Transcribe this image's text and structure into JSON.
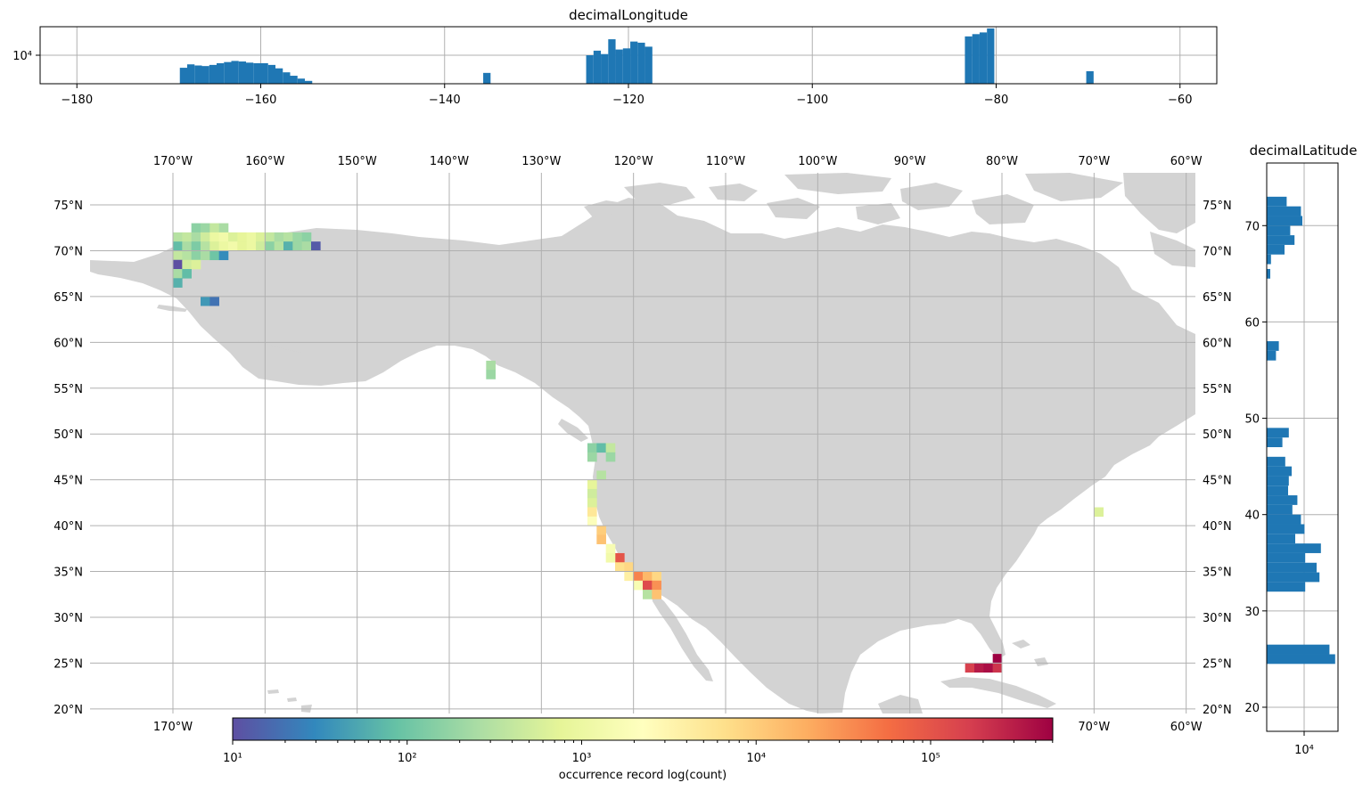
{
  "chart_data": [
    {
      "type": "bar",
      "title": "decimalLongitude",
      "orientation": "vertical",
      "xlim": [
        -184,
        -56
      ],
      "log_scale": "y",
      "grid": true,
      "xticks": [
        -180,
        -160,
        -140,
        -120,
        -100,
        -80,
        -60
      ],
      "xtick_labels": [
        "−180",
        "−160",
        "−140",
        "−120",
        "−100",
        "−80",
        "−60"
      ],
      "ytick_label": "10⁴",
      "color": "#1f77b4",
      "bins": [
        {
          "x0": -168.8,
          "x1": -168.0,
          "frac": 0.28
        },
        {
          "x0": -168.0,
          "x1": -167.2,
          "frac": 0.34
        },
        {
          "x0": -167.2,
          "x1": -166.4,
          "frac": 0.32
        },
        {
          "x0": -166.4,
          "x1": -165.6,
          "frac": 0.31
        },
        {
          "x0": -165.6,
          "x1": -164.8,
          "frac": 0.33
        },
        {
          "x0": -164.8,
          "x1": -164.0,
          "frac": 0.36
        },
        {
          "x0": -164.0,
          "x1": -163.2,
          "frac": 0.38
        },
        {
          "x0": -163.2,
          "x1": -162.4,
          "frac": 0.4
        },
        {
          "x0": -162.4,
          "x1": -161.6,
          "frac": 0.39
        },
        {
          "x0": -161.6,
          "x1": -160.8,
          "frac": 0.37
        },
        {
          "x0": -160.8,
          "x1": -160.0,
          "frac": 0.36
        },
        {
          "x0": -160.0,
          "x1": -159.2,
          "frac": 0.36
        },
        {
          "x0": -159.2,
          "x1": -158.4,
          "frac": 0.33
        },
        {
          "x0": -158.4,
          "x1": -157.6,
          "frac": 0.27
        },
        {
          "x0": -157.6,
          "x1": -156.8,
          "frac": 0.2
        },
        {
          "x0": -156.8,
          "x1": -156.0,
          "frac": 0.14
        },
        {
          "x0": -156.0,
          "x1": -155.2,
          "frac": 0.09
        },
        {
          "x0": -155.2,
          "x1": -154.4,
          "frac": 0.05
        },
        {
          "x0": -135.8,
          "x1": -135.0,
          "frac": 0.19
        },
        {
          "x0": -124.6,
          "x1": -123.8,
          "frac": 0.5
        },
        {
          "x0": -123.8,
          "x1": -123.0,
          "frac": 0.58
        },
        {
          "x0": -123.0,
          "x1": -122.2,
          "frac": 0.52
        },
        {
          "x0": -122.2,
          "x1": -121.4,
          "frac": 0.78
        },
        {
          "x0": -121.4,
          "x1": -120.6,
          "frac": 0.6
        },
        {
          "x0": -120.6,
          "x1": -119.8,
          "frac": 0.62
        },
        {
          "x0": -119.8,
          "x1": -119.0,
          "frac": 0.74
        },
        {
          "x0": -119.0,
          "x1": -118.2,
          "frac": 0.72
        },
        {
          "x0": -118.2,
          "x1": -117.4,
          "frac": 0.65
        },
        {
          "x0": -83.4,
          "x1": -82.6,
          "frac": 0.83
        },
        {
          "x0": -82.6,
          "x1": -81.8,
          "frac": 0.87
        },
        {
          "x0": -81.8,
          "x1": -81.0,
          "frac": 0.9
        },
        {
          "x0": -81.0,
          "x1": -80.2,
          "frac": 0.97
        },
        {
          "x0": -70.2,
          "x1": -69.4,
          "frac": 0.22
        }
      ]
    },
    {
      "type": "heatmap",
      "projection": "PlateCarree",
      "lon_range": [
        -179,
        -59
      ],
      "lat_range": [
        19.5,
        78.5
      ],
      "cell_size_deg": 1,
      "grid": true,
      "lon_ticks": [
        -170,
        -160,
        -150,
        -140,
        -130,
        -120,
        -110,
        -100,
        -90,
        -80,
        -70,
        -60
      ],
      "lon_labels": [
        "170°W",
        "160°W",
        "150°W",
        "140°W",
        "130°W",
        "120°W",
        "110°W",
        "100°W",
        "90°W",
        "80°W",
        "70°W",
        "60°W"
      ],
      "lon_bottom_labels": [
        "170°W",
        "70°W",
        "60°W"
      ],
      "lat_ticks": [
        20,
        25,
        30,
        35,
        40,
        45,
        50,
        55,
        60,
        65,
        70,
        75
      ],
      "lat_labels": [
        "20°N",
        "25°N",
        "30°N",
        "35°N",
        "40°N",
        "45°N",
        "50°N",
        "55°N",
        "60°N",
        "65°N",
        "70°N",
        "75°N"
      ],
      "land_color": "#d3d3d3",
      "log10_range": [
        1,
        5.7
      ],
      "cells": [
        {
          "lon": -167.5,
          "lat": 72.5,
          "log10": 2.2
        },
        {
          "lon": -166.5,
          "lat": 72.5,
          "log10": 2.3
        },
        {
          "lon": -165.5,
          "lat": 72.5,
          "log10": 2.6
        },
        {
          "lon": -164.5,
          "lat": 72.5,
          "log10": 2.4
        },
        {
          "lon": -169.5,
          "lat": 71.5,
          "log10": 2.5
        },
        {
          "lon": -168.5,
          "lat": 71.5,
          "log10": 2.6
        },
        {
          "lon": -167.5,
          "lat": 71.5,
          "log10": 2.4
        },
        {
          "lon": -166.5,
          "lat": 71.5,
          "log10": 2.7
        },
        {
          "lon": -165.5,
          "lat": 71.5,
          "log10": 3.0
        },
        {
          "lon": -164.5,
          "lat": 71.5,
          "log10": 3.1
        },
        {
          "lon": -163.5,
          "lat": 71.5,
          "log10": 2.8
        },
        {
          "lon": -162.5,
          "lat": 71.5,
          "log10": 2.9
        },
        {
          "lon": -161.5,
          "lat": 71.5,
          "log10": 3.0
        },
        {
          "lon": -160.5,
          "lat": 71.5,
          "log10": 2.8
        },
        {
          "lon": -159.5,
          "lat": 71.5,
          "log10": 2.6
        },
        {
          "lon": -158.5,
          "lat": 71.5,
          "log10": 2.4
        },
        {
          "lon": -157.5,
          "lat": 71.5,
          "log10": 2.5
        },
        {
          "lon": -156.5,
          "lat": 71.5,
          "log10": 2.3
        },
        {
          "lon": -155.5,
          "lat": 71.5,
          "log10": 2.2
        },
        {
          "lon": -169.5,
          "lat": 70.5,
          "log10": 1.9
        },
        {
          "lon": -168.5,
          "lat": 70.5,
          "log10": 2.4
        },
        {
          "lon": -167.5,
          "lat": 70.5,
          "log10": 2.1
        },
        {
          "lon": -166.5,
          "lat": 70.5,
          "log10": 2.5
        },
        {
          "lon": -165.5,
          "lat": 70.5,
          "log10": 2.8
        },
        {
          "lon": -164.5,
          "lat": 70.5,
          "log10": 3.0
        },
        {
          "lon": -163.5,
          "lat": 70.5,
          "log10": 3.1
        },
        {
          "lon": -162.5,
          "lat": 70.5,
          "log10": 2.9
        },
        {
          "lon": -161.5,
          "lat": 70.5,
          "log10": 3.0
        },
        {
          "lon": -160.5,
          "lat": 70.5,
          "log10": 2.7
        },
        {
          "lon": -159.5,
          "lat": 70.5,
          "log10": 2.2
        },
        {
          "lon": -158.5,
          "lat": 70.5,
          "log10": 2.5
        },
        {
          "lon": -157.5,
          "lat": 70.5,
          "log10": 1.8
        },
        {
          "lon": -156.5,
          "lat": 70.5,
          "log10": 2.3
        },
        {
          "lon": -155.5,
          "lat": 70.5,
          "log10": 2.4
        },
        {
          "lon": -154.5,
          "lat": 70.5,
          "log10": 1.1
        },
        {
          "lon": -169.5,
          "lat": 69.5,
          "log10": 2.6
        },
        {
          "lon": -168.5,
          "lat": 69.5,
          "log10": 2.5
        },
        {
          "lon": -167.5,
          "lat": 69.5,
          "log10": 2.2
        },
        {
          "lon": -166.5,
          "lat": 69.5,
          "log10": 2.4
        },
        {
          "lon": -165.5,
          "lat": 69.5,
          "log10": 2.0
        },
        {
          "lon": -164.5,
          "lat": 69.5,
          "log10": 1.5
        },
        {
          "lon": -169.5,
          "lat": 68.5,
          "log10": 1.0
        },
        {
          "lon": -168.5,
          "lat": 68.5,
          "log10": 2.7
        },
        {
          "lon": -167.5,
          "lat": 68.5,
          "log10": 2.8
        },
        {
          "lon": -169.5,
          "lat": 67.5,
          "log10": 2.4
        },
        {
          "lon": -168.5,
          "lat": 67.5,
          "log10": 1.9
        },
        {
          "lon": -169.5,
          "lat": 66.5,
          "log10": 1.8
        },
        {
          "lon": -166.5,
          "lat": 64.5,
          "log10": 1.6
        },
        {
          "lon": -165.5,
          "lat": 64.5,
          "log10": 1.3
        },
        {
          "lon": -135.5,
          "lat": 57.5,
          "log10": 2.4
        },
        {
          "lon": -135.5,
          "lat": 56.5,
          "log10": 2.3
        },
        {
          "lon": -124.5,
          "lat": 48.5,
          "log10": 2.2
        },
        {
          "lon": -123.5,
          "lat": 48.5,
          "log10": 1.9
        },
        {
          "lon": -122.5,
          "lat": 48.5,
          "log10": 2.6
        },
        {
          "lon": -124.5,
          "lat": 47.5,
          "log10": 2.3
        },
        {
          "lon": -122.5,
          "lat": 47.5,
          "log10": 2.3
        },
        {
          "lon": -123.5,
          "lat": 45.5,
          "log10": 2.5
        },
        {
          "lon": -124.5,
          "lat": 44.5,
          "log10": 2.9
        },
        {
          "lon": -124.5,
          "lat": 43.5,
          "log10": 2.7
        },
        {
          "lon": -124.5,
          "lat": 42.5,
          "log10": 2.8
        },
        {
          "lon": -124.5,
          "lat": 41.5,
          "log10": 3.7
        },
        {
          "lon": -124.5,
          "lat": 40.5,
          "log10": 3.3
        },
        {
          "lon": -123.5,
          "lat": 39.5,
          "log10": 4.0
        },
        {
          "lon": -123.5,
          "lat": 38.5,
          "log10": 4.1
        },
        {
          "lon": -122.5,
          "lat": 37.5,
          "log10": 3.2
        },
        {
          "lon": -121.5,
          "lat": 36.5,
          "log10": 5.0
        },
        {
          "lon": -122.5,
          "lat": 36.5,
          "log10": 3.1
        },
        {
          "lon": -121.5,
          "lat": 35.5,
          "log10": 3.8
        },
        {
          "lon": -120.5,
          "lat": 35.5,
          "log10": 3.9
        },
        {
          "lon": -120.5,
          "lat": 34.5,
          "log10": 3.6
        },
        {
          "lon": -119.5,
          "lat": 34.5,
          "log10": 4.6
        },
        {
          "lon": -118.5,
          "lat": 34.5,
          "log10": 4.2
        },
        {
          "lon": -117.5,
          "lat": 34.5,
          "log10": 3.9
        },
        {
          "lon": -119.5,
          "lat": 33.5,
          "log10": 3.2
        },
        {
          "lon": -118.5,
          "lat": 33.5,
          "log10": 5.1
        },
        {
          "lon": -117.5,
          "lat": 33.5,
          "log10": 4.5
        },
        {
          "lon": -118.5,
          "lat": 32.5,
          "log10": 2.5
        },
        {
          "lon": -117.5,
          "lat": 32.5,
          "log10": 4.1
        },
        {
          "lon": -69.5,
          "lat": 41.5,
          "log10": 2.8
        },
        {
          "lon": -80.5,
          "lat": 25.5,
          "log10": 5.7
        },
        {
          "lon": -83.5,
          "lat": 24.5,
          "log10": 5.2
        },
        {
          "lon": -82.5,
          "lat": 24.5,
          "log10": 5.5
        },
        {
          "lon": -81.5,
          "lat": 24.5,
          "log10": 5.6
        },
        {
          "lon": -80.5,
          "lat": 24.5,
          "log10": 5.3
        }
      ],
      "colorbar": {
        "cmap": "Spectral_r",
        "log10_range": [
          1,
          5.7
        ],
        "ticks": [
          1,
          2,
          3,
          4,
          5
        ],
        "tick_labels": [
          "10¹",
          "10²",
          "10³",
          "10⁴",
          "10⁵"
        ],
        "label": "occurrence record log(count)",
        "stops": [
          "#5e4fa2",
          "#3288bd",
          "#66c2a5",
          "#abdda4",
          "#e6f598",
          "#ffffbf",
          "#fee08b",
          "#fdae61",
          "#f46d43",
          "#d53e4f",
          "#9e0142"
        ]
      }
    },
    {
      "type": "bar",
      "title": "decimalLatitude",
      "orientation": "horizontal",
      "ylim": [
        17.5,
        76.5
      ],
      "log_scale": "x",
      "grid": true,
      "yticks": [
        20,
        30,
        40,
        50,
        60,
        70
      ],
      "ytick_labels": [
        "20",
        "30",
        "40",
        "50",
        "60",
        "70"
      ],
      "xtick_label": "10⁴",
      "color": "#1f77b4",
      "bins": [
        {
          "y0": 24.5,
          "y1": 25.5,
          "frac": 0.96
        },
        {
          "y0": 25.5,
          "y1": 26.5,
          "frac": 0.88
        },
        {
          "y0": 32.0,
          "y1": 33.0,
          "frac": 0.54
        },
        {
          "y0": 33.0,
          "y1": 34.0,
          "frac": 0.74
        },
        {
          "y0": 34.0,
          "y1": 35.0,
          "frac": 0.7
        },
        {
          "y0": 35.0,
          "y1": 36.0,
          "frac": 0.54
        },
        {
          "y0": 36.0,
          "y1": 37.0,
          "frac": 0.76
        },
        {
          "y0": 37.0,
          "y1": 38.0,
          "frac": 0.4
        },
        {
          "y0": 38.0,
          "y1": 39.0,
          "frac": 0.53
        },
        {
          "y0": 39.0,
          "y1": 40.0,
          "frac": 0.48
        },
        {
          "y0": 40.0,
          "y1": 41.0,
          "frac": 0.36
        },
        {
          "y0": 41.0,
          "y1": 42.0,
          "frac": 0.43
        },
        {
          "y0": 42.0,
          "y1": 43.0,
          "frac": 0.3
        },
        {
          "y0": 43.0,
          "y1": 44.0,
          "frac": 0.31
        },
        {
          "y0": 44.0,
          "y1": 45.0,
          "frac": 0.35
        },
        {
          "y0": 45.0,
          "y1": 46.0,
          "frac": 0.26
        },
        {
          "y0": 47.0,
          "y1": 48.0,
          "frac": 0.22
        },
        {
          "y0": 48.0,
          "y1": 49.0,
          "frac": 0.31
        },
        {
          "y0": 56.0,
          "y1": 57.0,
          "frac": 0.13
        },
        {
          "y0": 57.0,
          "y1": 58.0,
          "frac": 0.17
        },
        {
          "y0": 64.5,
          "y1": 65.5,
          "frac": 0.05
        },
        {
          "y0": 66.0,
          "y1": 67.0,
          "frac": 0.06
        },
        {
          "y0": 67.0,
          "y1": 68.0,
          "frac": 0.25
        },
        {
          "y0": 68.0,
          "y1": 69.0,
          "frac": 0.39
        },
        {
          "y0": 69.0,
          "y1": 70.0,
          "frac": 0.33
        },
        {
          "y0": 70.0,
          "y1": 71.0,
          "frac": 0.5
        },
        {
          "y0": 71.0,
          "y1": 72.0,
          "frac": 0.48
        },
        {
          "y0": 72.0,
          "y1": 73.0,
          "frac": 0.28
        }
      ]
    }
  ]
}
